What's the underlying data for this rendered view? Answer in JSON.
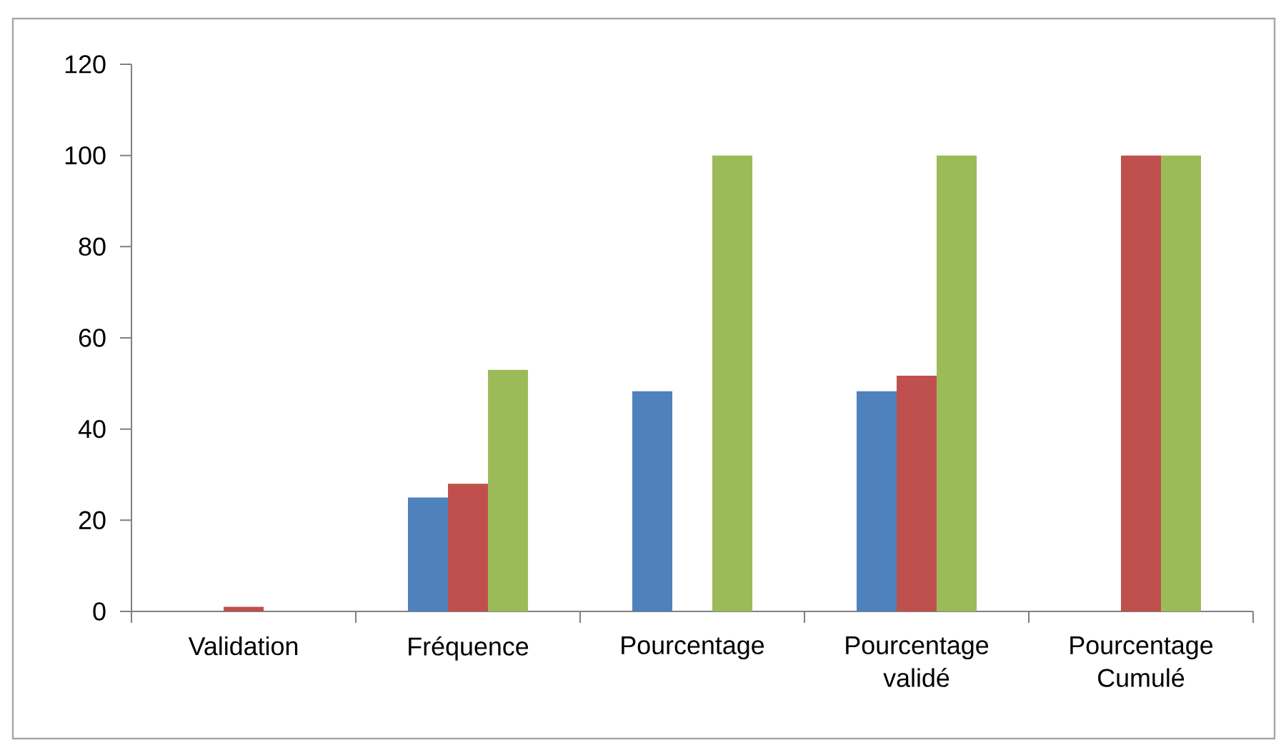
{
  "chart_data": {
    "type": "bar",
    "categories": [
      "Validation",
      "Fréquence",
      "Pourcentage",
      "Pourcentage validé",
      "Pourcentage Cumulé"
    ],
    "series": [
      {
        "color": "#4f81bd",
        "values": [
          null,
          25,
          48.3,
          48.3,
          null
        ]
      },
      {
        "color": "#c0504d",
        "values": [
          1,
          28,
          null,
          51.7,
          100
        ]
      },
      {
        "color": "#9bbb59",
        "values": [
          null,
          53,
          100,
          100,
          100
        ]
      }
    ],
    "ylim": [
      0,
      120
    ],
    "yticks": [
      0,
      20,
      40,
      60,
      80,
      100,
      120
    ]
  }
}
